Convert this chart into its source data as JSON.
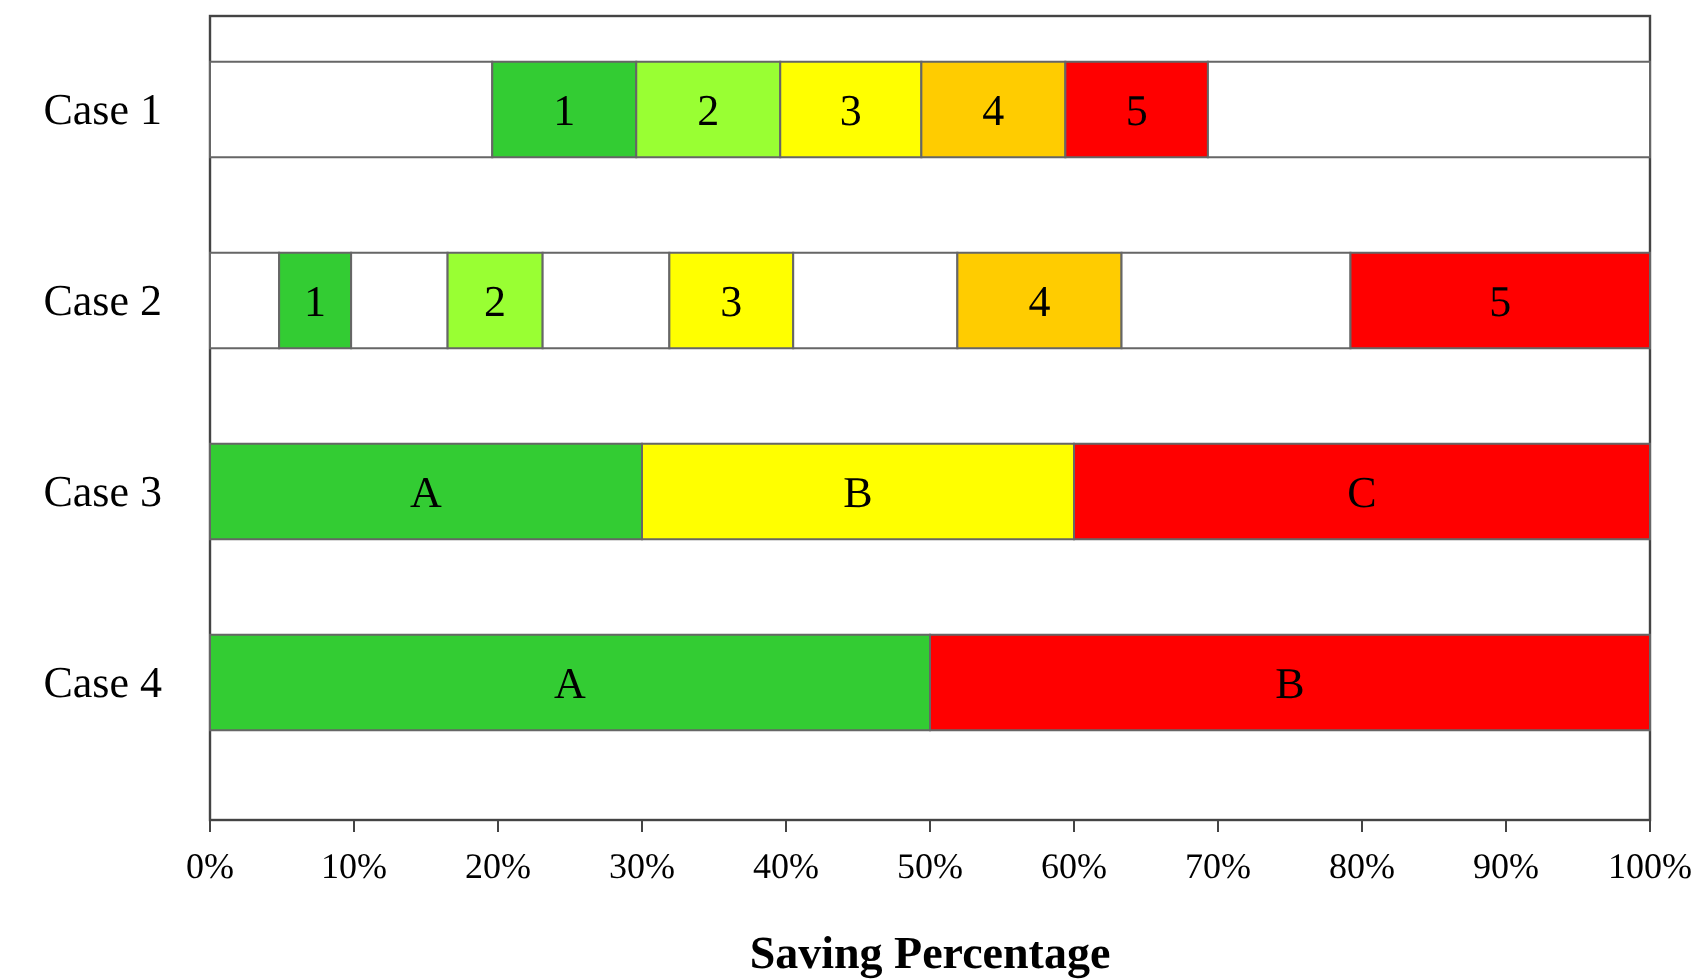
{
  "chart_data": {
    "type": "bar",
    "orientation": "horizontal",
    "stacked": true,
    "xlabel": "Saving Percentage",
    "categories": [
      "Case 1",
      "Case 2",
      "Case 3",
      "Case 4"
    ],
    "xlim": [
      0,
      100
    ],
    "xticks": [
      {
        "value": 0,
        "label": "0%"
      },
      {
        "value": 10,
        "label": "10%"
      },
      {
        "value": 20,
        "label": "20%"
      },
      {
        "value": 30,
        "label": "30%"
      },
      {
        "value": 40,
        "label": "40%"
      },
      {
        "value": 50,
        "label": "50%"
      },
      {
        "value": 60,
        "label": "60%"
      },
      {
        "value": 70,
        "label": "70%"
      },
      {
        "value": 80,
        "label": "80%"
      },
      {
        "value": 90,
        "label": "90%"
      },
      {
        "value": 100,
        "label": "100%"
      }
    ],
    "grid": false,
    "legend": false,
    "series": [
      {
        "values": [
          19.6,
          4.8,
          30,
          50
        ],
        "colors": [
          "#ffffff",
          "#ffffff",
          "#33cc33",
          "#33cc33"
        ]
      },
      {
        "values": [
          10,
          5,
          30,
          50
        ],
        "colors": [
          "#33cc33",
          "#33cc33",
          "#ffff00",
          "#ff0000"
        ]
      },
      {
        "values": [
          10,
          6.7,
          40,
          null
        ],
        "colors": [
          "#99ff33",
          "#ffffff",
          "#ff0000",
          null
        ]
      },
      {
        "values": [
          9.8,
          6.6,
          null,
          null
        ],
        "colors": [
          "#ffff00",
          "#99ff33",
          null,
          null
        ]
      },
      {
        "values": [
          10,
          8.8,
          null,
          null
        ],
        "colors": [
          "#ffcc00",
          "#ffffff",
          null,
          null
        ]
      },
      {
        "values": [
          9.9,
          8.6,
          null,
          null
        ],
        "colors": [
          "#ff0000",
          "#ffff00",
          null,
          null
        ]
      },
      {
        "values": [
          30.7,
          11.4,
          null,
          null
        ],
        "colors": [
          "#ffffff",
          "#ffffff",
          null,
          null
        ]
      },
      {
        "values": [
          null,
          11.4,
          null,
          null
        ],
        "colors": [
          null,
          "#ffcc00",
          null,
          null
        ]
      },
      {
        "values": [
          null,
          15.9,
          null,
          null
        ],
        "colors": [
          null,
          "#ffffff",
          null,
          null
        ]
      },
      {
        "values": [
          null,
          20.8,
          null,
          null
        ],
        "colors": [
          null,
          "#ff0000",
          null,
          null
        ]
      }
    ],
    "annotations": [
      "1",
      "2",
      "3",
      "4",
      "5",
      "1",
      "2",
      "3",
      "4",
      "5",
      "A",
      "B",
      "C",
      "A",
      "B"
    ]
  }
}
